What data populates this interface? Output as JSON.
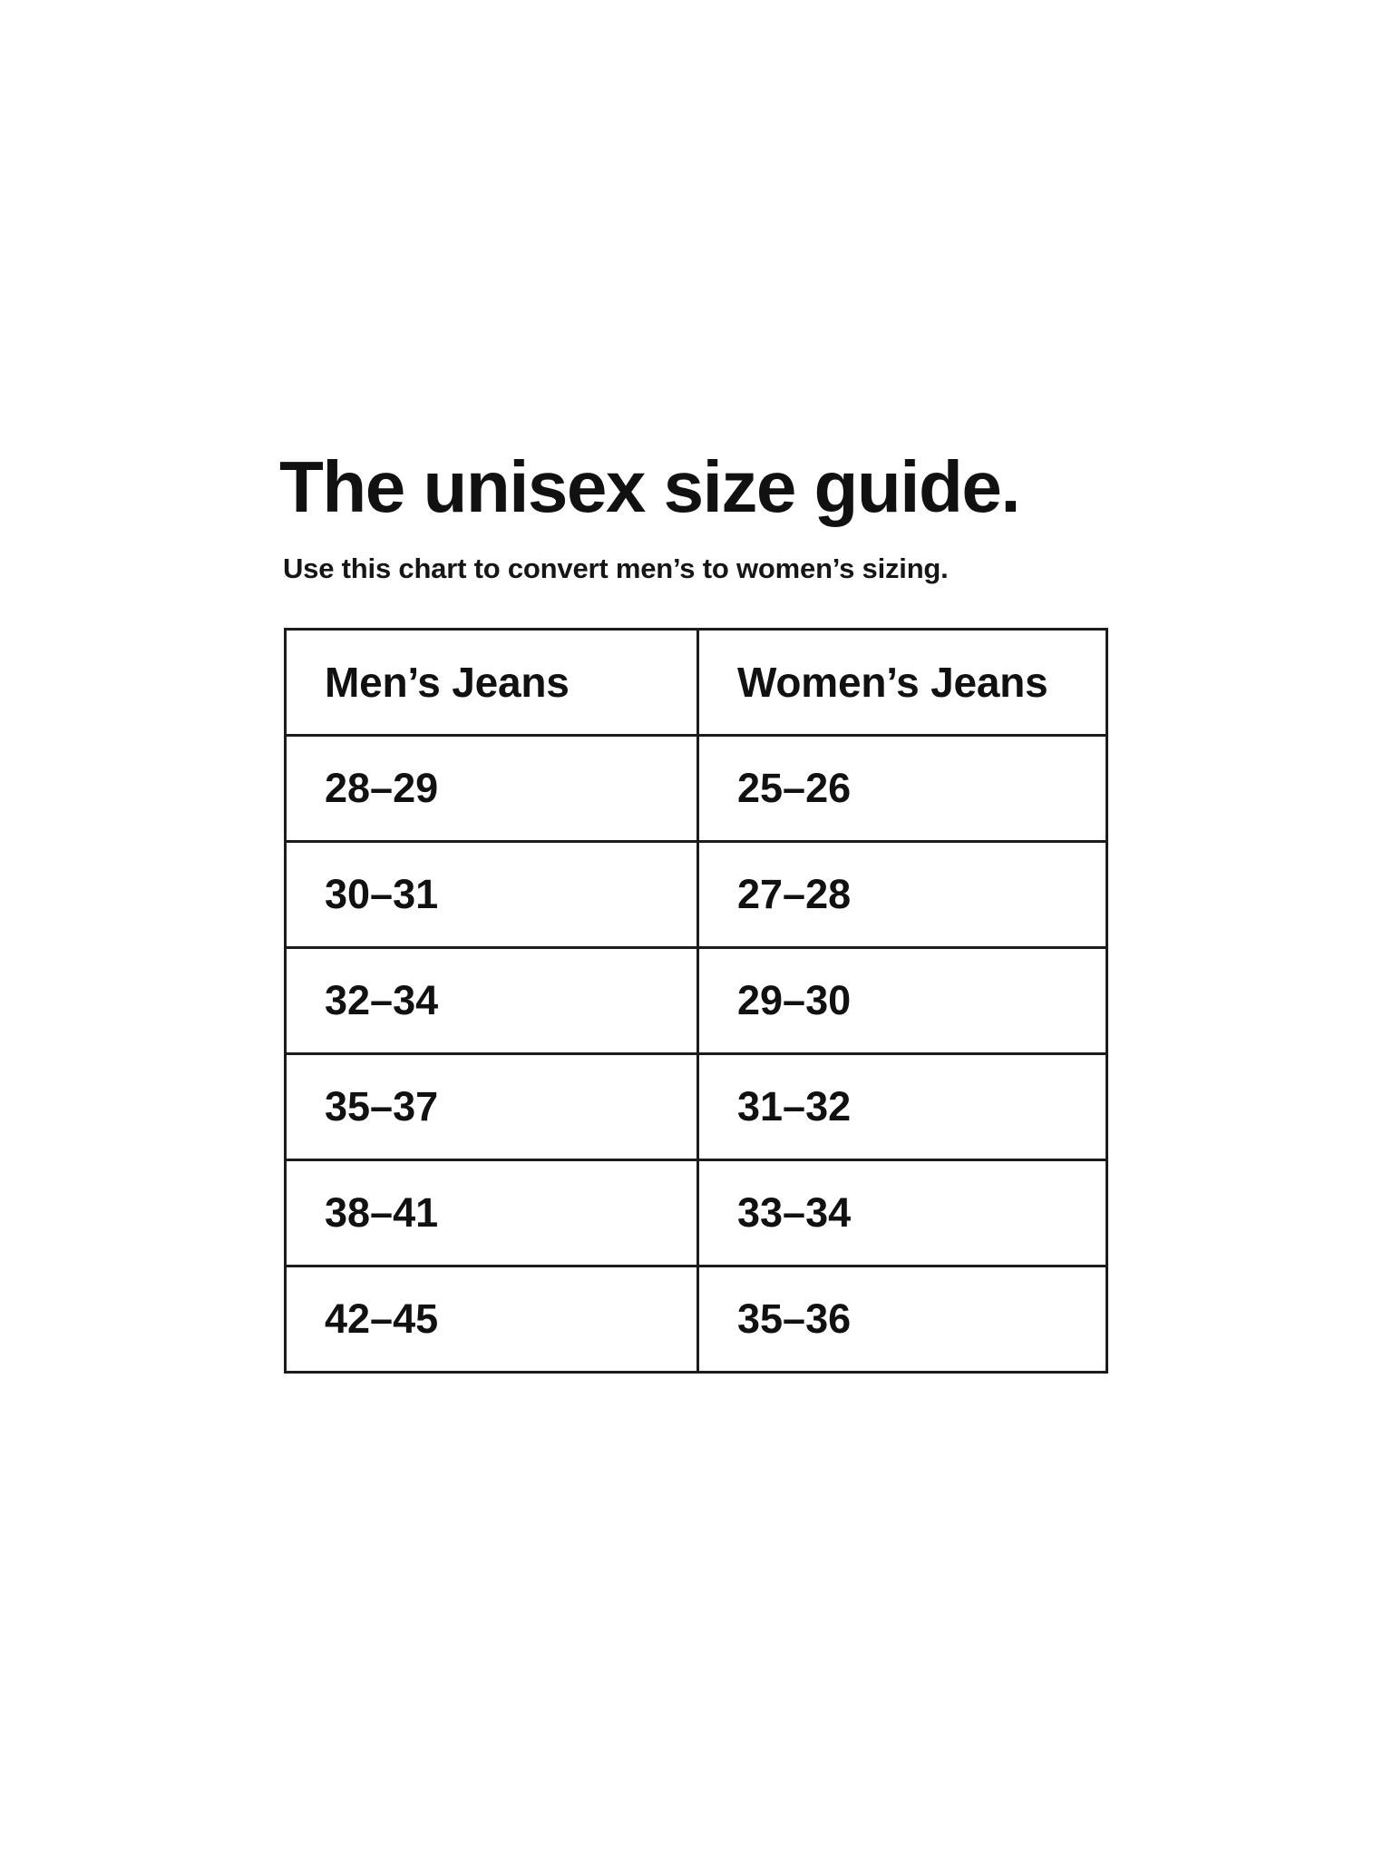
{
  "page": {
    "title": "The unisex size guide.",
    "subtitle": "Use this chart to convert men’s to women’s sizing."
  },
  "table": {
    "columns": [
      "Men’s Jeans",
      "Women’s Jeans"
    ],
    "rows": [
      [
        "28–29",
        "25–26"
      ],
      [
        "30–31",
        "27–28"
      ],
      [
        "32–34",
        "29–30"
      ],
      [
        "35–37",
        "31–32"
      ],
      [
        "38–41",
        "33–34"
      ],
      [
        "42–45",
        "35–36"
      ]
    ]
  },
  "colors": {
    "background": "#ffffff",
    "text": "#111111",
    "border": "#1c1c1c"
  }
}
